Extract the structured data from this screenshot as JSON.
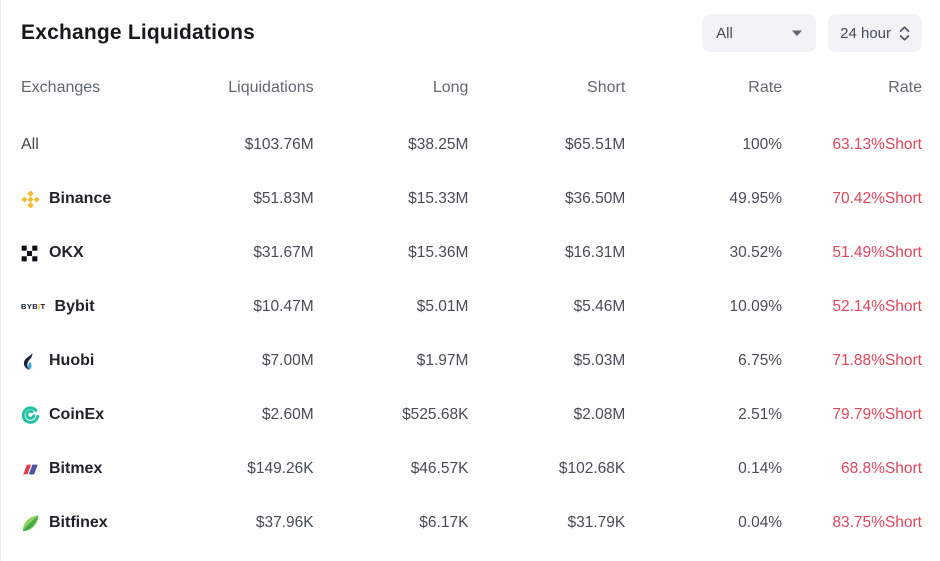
{
  "header": {
    "title": "Exchange Liquidations",
    "filters": [
      {
        "label": "All",
        "icon": "caret-down-icon"
      },
      {
        "label": "24 hour",
        "icon": "up-down-chevrons-icon"
      }
    ]
  },
  "table": {
    "columns": [
      "Exchanges",
      "Liquidations",
      "Long",
      "Short",
      "Rate",
      "Rate"
    ],
    "rows": [
      {
        "exchange": "All",
        "icon": "none",
        "bold": false,
        "liquidations": "$103.76M",
        "long": "$38.25M",
        "short": "$65.51M",
        "rate": "100%",
        "rate_short": "63.13%Short"
      },
      {
        "exchange": "Binance",
        "icon": "binance",
        "bold": true,
        "liquidations": "$51.83M",
        "long": "$15.33M",
        "short": "$36.50M",
        "rate": "49.95%",
        "rate_short": "70.42%Short"
      },
      {
        "exchange": "OKX",
        "icon": "okx",
        "bold": true,
        "liquidations": "$31.67M",
        "long": "$15.36M",
        "short": "$16.31M",
        "rate": "30.52%",
        "rate_short": "51.49%Short"
      },
      {
        "exchange": "Bybit",
        "icon": "bybit",
        "bold": true,
        "liquidations": "$10.47M",
        "long": "$5.01M",
        "short": "$5.46M",
        "rate": "10.09%",
        "rate_short": "52.14%Short"
      },
      {
        "exchange": "Huobi",
        "icon": "huobi",
        "bold": true,
        "liquidations": "$7.00M",
        "long": "$1.97M",
        "short": "$5.03M",
        "rate": "6.75%",
        "rate_short": "71.88%Short"
      },
      {
        "exchange": "CoinEx",
        "icon": "coinex",
        "bold": true,
        "liquidations": "$2.60M",
        "long": "$525.68K",
        "short": "$2.08M",
        "rate": "2.51%",
        "rate_short": "79.79%Short"
      },
      {
        "exchange": "Bitmex",
        "icon": "bitmex",
        "bold": true,
        "liquidations": "$149.26K",
        "long": "$46.57K",
        "short": "$102.68K",
        "rate": "0.14%",
        "rate_short": "68.8%Short"
      },
      {
        "exchange": "Bitfinex",
        "icon": "bitfinex",
        "bold": true,
        "liquidations": "$37.96K",
        "long": "$6.17K",
        "short": "$31.79K",
        "rate": "0.04%",
        "rate_short": "83.75%Short"
      }
    ]
  },
  "colors": {
    "accent_red": "#e0465b",
    "binance_yellow": "#f3ba2f",
    "okx_black": "#0d1117",
    "bybit_black": "#11192d",
    "bybit_yellow": "#f7a600",
    "huobi_navy": "#1b2143",
    "huobi_blue": "#2ca6e0",
    "coinex_teal": "#23c1a4",
    "bitmex_red": "#dd4050",
    "bitmex_blue": "#4a55a2",
    "bitfinex_green_dark": "#41ab4a",
    "bitfinex_green_light": "#8fd05c"
  }
}
